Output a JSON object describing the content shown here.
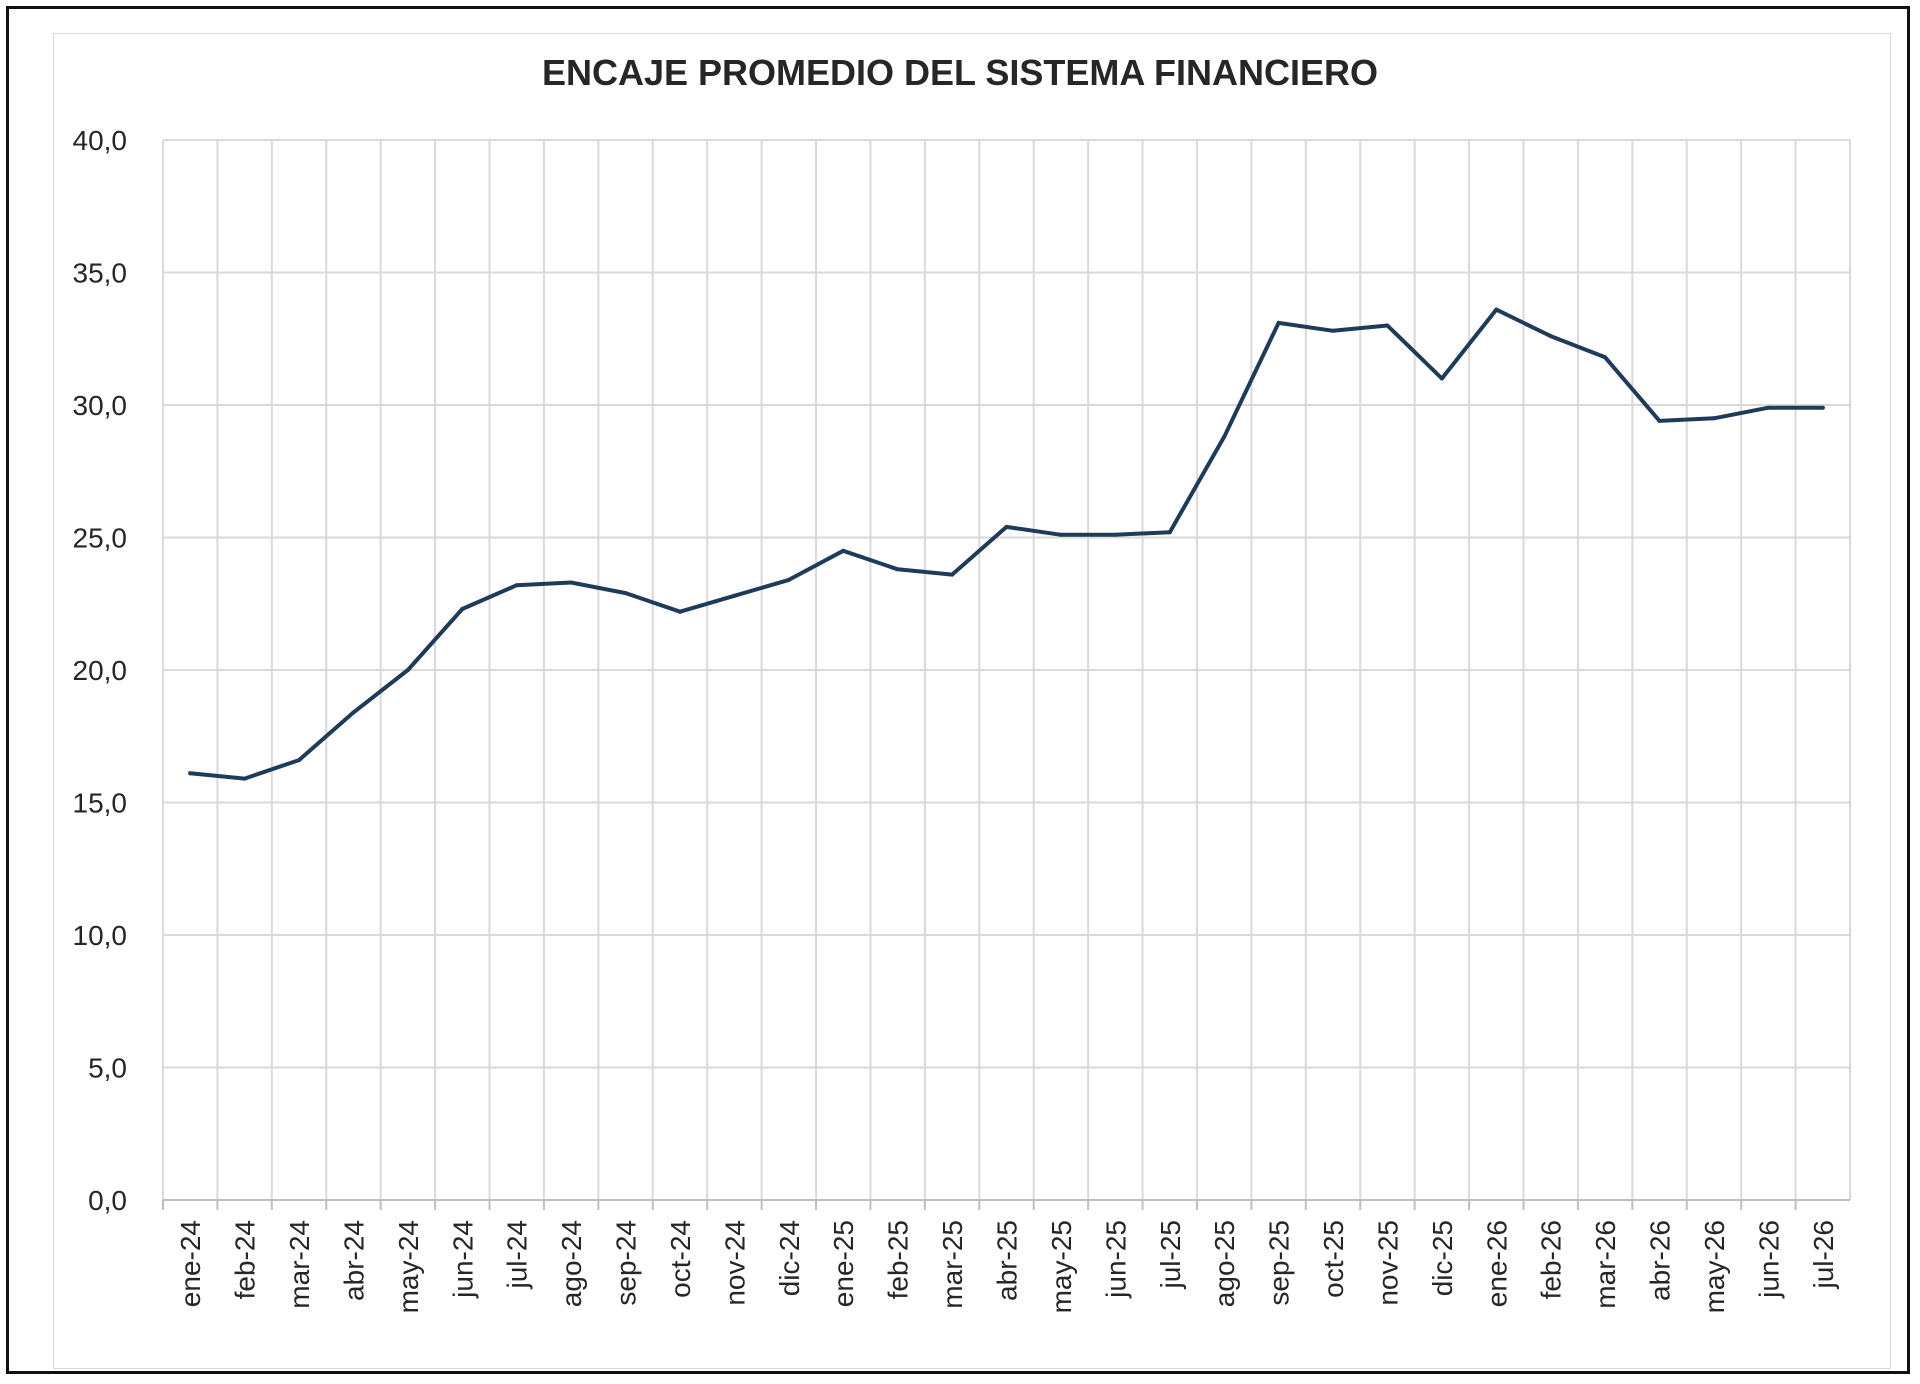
{
  "chart_data": {
    "type": "line",
    "title": "ENCAJE PROMEDIO DEL SISTEMA FINANCIERO",
    "xlabel": "",
    "ylabel": "",
    "ylim": [
      0,
      40
    ],
    "yticks": [
      "0,0",
      "5,0",
      "10,0",
      "15,0",
      "20,0",
      "25,0",
      "30,0",
      "35,0",
      "40,0"
    ],
    "grid": true,
    "legend": "none",
    "line_color": "#1f3b5a",
    "categories": [
      "ene-24",
      "feb-24",
      "mar-24",
      "abr-24",
      "may-24",
      "jun-24",
      "jul-24",
      "ago-24",
      "sep-24",
      "oct-24",
      "nov-24",
      "dic-24",
      "ene-25",
      "feb-25",
      "mar-25",
      "abr-25",
      "may-25",
      "jun-25",
      "jul-25",
      "ago-25",
      "sep-25",
      "oct-25",
      "nov-25",
      "dic-25",
      "ene-26",
      "feb-26",
      "mar-26",
      "abr-26",
      "may-26",
      "jun-26",
      "jul-26"
    ],
    "series": [
      {
        "values": [
          16.1,
          15.9,
          16.6,
          18.4,
          20.0,
          22.3,
          23.2,
          23.3,
          22.9,
          22.2,
          22.8,
          23.4,
          24.5,
          23.8,
          23.6,
          25.4,
          25.1,
          25.1,
          25.2,
          28.8,
          33.1,
          32.8,
          33.0,
          31.0,
          33.6,
          32.6,
          31.8,
          29.4,
          29.5,
          29.9,
          29.9
        ]
      }
    ]
  }
}
